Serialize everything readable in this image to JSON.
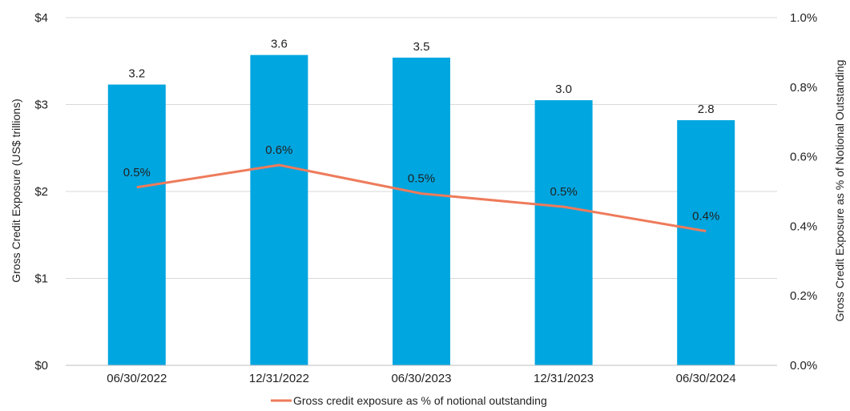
{
  "chart_data": {
    "type": "bar",
    "title": "",
    "categories": [
      "06/30/2022",
      "12/31/2022",
      "06/30/2023",
      "12/31/2023",
      "06/30/2024"
    ],
    "series": [
      {
        "values": [
          3.2,
          3.6,
          3.5,
          3.0,
          2.8
        ],
        "plotted_values": [
          3.23,
          3.57,
          3.54,
          3.05,
          2.82
        ],
        "data_labels": [
          "3.2",
          "3.6",
          "3.5",
          "3.0",
          "2.8"
        ],
        "axis": "left",
        "kind": "bar",
        "color": "#00A6E0"
      },
      {
        "name": "Gross credit exposure as % of notional outstanding",
        "values": [
          0.5,
          0.6,
          0.5,
          0.5,
          0.4
        ],
        "plotted_values": [
          0.512,
          0.576,
          0.494,
          0.456,
          0.386
        ],
        "data_labels": [
          "0.5%",
          "0.6%",
          "0.5%",
          "0.5%",
          "0.4%"
        ],
        "axis": "right",
        "kind": "line",
        "color": "#EE7B5B"
      }
    ],
    "ylabel": "Gross Credit Exposure (US$ trillions)",
    "ylabel_right": "Gross Credit Exposure as % of Notional Outstanding",
    "ylim": [
      0,
      4
    ],
    "ylim_right": [
      0,
      1.0
    ],
    "yticks": [
      "$0",
      "$1",
      "$2",
      "$3",
      "$4"
    ],
    "yticks_right": [
      "0.0%",
      "0.2%",
      "0.4%",
      "0.6%",
      "0.8%",
      "1.0%"
    ],
    "grid": true,
    "legend_position": "bottom"
  }
}
